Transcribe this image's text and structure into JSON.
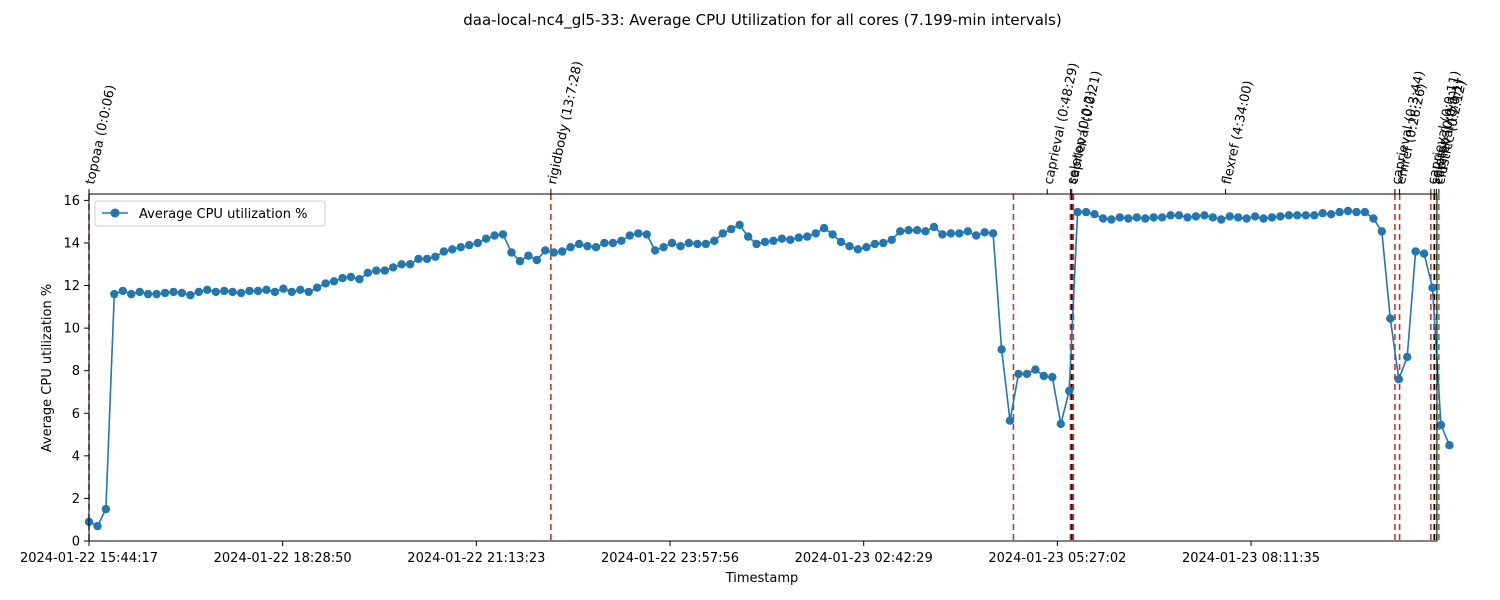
{
  "chart_data": {
    "type": "line",
    "title": "daa-local-nc4_gl5-33: Average CPU Utilization for all cores (7.199-min intervals)",
    "xlabel": "Timestamp",
    "ylabel": "Average CPU utilization %",
    "ylim": [
      0,
      16.3
    ],
    "y_ticks": [
      0,
      2,
      4,
      6,
      8,
      10,
      12,
      14,
      16
    ],
    "x_start": "2024-01-22 15:44:17",
    "interval_minutes": 7.199,
    "x_ticks": [
      "2024-01-22 15:44:17",
      "2024-01-22 18:28:50",
      "2024-01-22 21:13:23",
      "2024-01-22 23:57:56",
      "2024-01-23 02:42:29",
      "2024-01-23 05:27:02",
      "2024-01-23 08:11:35"
    ],
    "legend": {
      "label": "Average CPU utilization %",
      "placement": "upper-left"
    },
    "series": [
      {
        "name": "Average CPU utilization %",
        "color": "#1f77b4",
        "values": [
          0.9,
          0.7,
          1.5,
          11.6,
          11.75,
          11.6,
          11.7,
          11.6,
          11.6,
          11.65,
          11.7,
          11.65,
          11.55,
          11.7,
          11.8,
          11.7,
          11.75,
          11.7,
          11.65,
          11.75,
          11.75,
          11.8,
          11.7,
          11.85,
          11.7,
          11.8,
          11.7,
          11.9,
          12.1,
          12.2,
          12.35,
          12.4,
          12.3,
          12.6,
          12.7,
          12.7,
          12.85,
          13.0,
          13.0,
          13.25,
          13.25,
          13.35,
          13.6,
          13.7,
          13.8,
          13.9,
          14.0,
          14.2,
          14.35,
          14.4,
          13.55,
          13.15,
          13.4,
          13.2,
          13.65,
          13.55,
          13.6,
          13.8,
          13.95,
          13.85,
          13.8,
          14.0,
          14.0,
          14.1,
          14.35,
          14.45,
          14.4,
          13.65,
          13.8,
          14.0,
          13.85,
          14.0,
          13.95,
          13.95,
          14.1,
          14.45,
          14.65,
          14.85,
          14.3,
          13.95,
          14.05,
          14.1,
          14.2,
          14.15,
          14.25,
          14.3,
          14.45,
          14.7,
          14.4,
          14.05,
          13.85,
          13.7,
          13.8,
          13.95,
          14.0,
          14.15,
          14.55,
          14.6,
          14.6,
          14.55,
          14.75,
          14.4,
          14.45,
          14.45,
          14.55,
          14.35,
          14.5,
          14.45,
          9.0,
          5.65,
          7.85,
          7.85,
          8.05,
          7.75,
          7.7,
          5.5,
          7.05,
          15.45,
          15.45,
          15.35,
          15.15,
          15.1,
          15.2,
          15.15,
          15.2,
          15.15,
          15.2,
          15.2,
          15.3,
          15.3,
          15.2,
          15.25,
          15.3,
          15.2,
          15.1,
          15.25,
          15.2,
          15.15,
          15.25,
          15.15,
          15.2,
          15.25,
          15.3,
          15.3,
          15.3,
          15.3,
          15.4,
          15.35,
          15.45,
          15.5,
          15.45,
          15.45,
          15.15,
          14.55,
          10.45,
          7.6,
          8.65,
          13.6,
          13.5,
          11.9,
          5.45,
          4.5
        ]
      }
    ],
    "markers": [
      {
        "label": "topoaa (0:0:06)",
        "pos": 0.0,
        "color": "#c0392b"
      },
      {
        "label": "rigidbody (13:7:28)",
        "pos": 54.66,
        "color": "#c0392b"
      },
      {
        "label": "caprieval (0:48:29)",
        "pos": 109.4,
        "color": "#c0392b"
      },
      {
        "label": "seletop (0:0:2)",
        "pos": 116.15,
        "color": "#c0392b"
      },
      {
        "label": "caprieval (0:0:21)",
        "pos": 116.3,
        "color": "#000000"
      },
      {
        "label": "flexref (4:34:00)",
        "pos": 116.5,
        "color": "#c0392b"
      },
      {
        "label": "caprieval (0:3:44)",
        "pos": 154.55,
        "color": "#c0392b"
      },
      {
        "label": "emref (0:26:26)",
        "pos": 155.1,
        "color": "#c0392b"
      },
      {
        "label": "caprieval (0:0:11)",
        "pos": 158.8,
        "color": "#c0392b"
      },
      {
        "label": "seletop (0:0:1)",
        "pos": 159.2,
        "color": "#000000"
      },
      {
        "label": "caprieval (0:0:1)",
        "pos": 159.45,
        "color": "#c0392b"
      },
      {
        "label": "clustfcc (0:2:12)",
        "pos": 159.75,
        "color": "#2ca02c"
      }
    ],
    "marker_label_slots": [
      0.0,
      54.66,
      113.4,
      116.15,
      116.3,
      134.5,
      154.55,
      155.1,
      158.8,
      159.2,
      159.45,
      159.75
    ]
  }
}
